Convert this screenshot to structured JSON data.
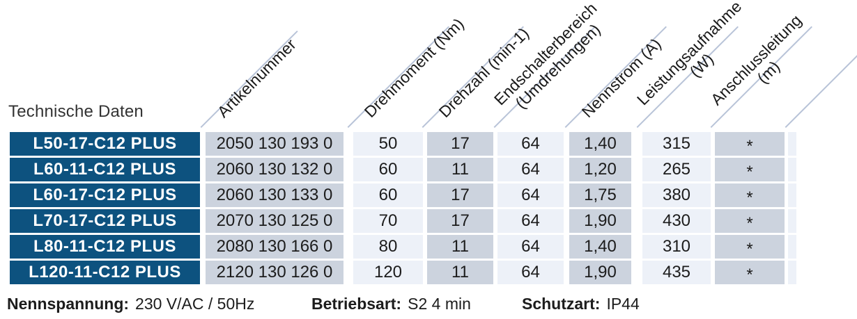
{
  "title": "Technische Daten",
  "table": {
    "headers": [
      {
        "line1": "Artikelnummer"
      },
      {
        "line1": "Drehmoment (Nm)"
      },
      {
        "line1": "Drehzahl (min-1)"
      },
      {
        "line1": "Endschalterbereich",
        "line2": "(Umdrehungen)"
      },
      {
        "line1": "Nennstrom (A)"
      },
      {
        "line1": "Leistungsaufnahme",
        "line2": "(W)"
      },
      {
        "line1": "Anschlussleitung",
        "line2": "(m)"
      }
    ],
    "rows": [
      {
        "model": "L50-17-C12 PLUS",
        "artikelnummer": "2050 130 193 0",
        "drehmoment": "50",
        "drehzahl": "17",
        "endschalterbereich": "64",
        "nennstrom": "1,40",
        "leistungsaufnahme": "315",
        "anschlussleitung": "*"
      },
      {
        "model": "L60-11-C12 PLUS",
        "artikelnummer": "2060 130 132 0",
        "drehmoment": "60",
        "drehzahl": "11",
        "endschalterbereich": "64",
        "nennstrom": "1,20",
        "leistungsaufnahme": "265",
        "anschlussleitung": "*"
      },
      {
        "model": "L60-17-C12 PLUS",
        "artikelnummer": "2060 130 133 0",
        "drehmoment": "60",
        "drehzahl": "17",
        "endschalterbereich": "64",
        "nennstrom": "1,75",
        "leistungsaufnahme": "380",
        "anschlussleitung": "*"
      },
      {
        "model": "L70-17-C12 PLUS",
        "artikelnummer": "2070 130 125 0",
        "drehmoment": "70",
        "drehzahl": "17",
        "endschalterbereich": "64",
        "nennstrom": "1,90",
        "leistungsaufnahme": "430",
        "anschlussleitung": "*"
      },
      {
        "model": "L80-11-C12 PLUS",
        "artikelnummer": "2080 130 166 0",
        "drehmoment": "80",
        "drehzahl": "11",
        "endschalterbereich": "64",
        "nennstrom": "1,40",
        "leistungsaufnahme": "310",
        "anschlussleitung": "*"
      },
      {
        "model": "L120-11-C12 PLUS",
        "artikelnummer": "2120 130 126 0",
        "drehmoment": "120",
        "drehzahl": "11",
        "endschalterbereich": "64",
        "nennstrom": "1,90",
        "leistungsaufnahme": "435",
        "anschlussleitung": "*"
      }
    ]
  },
  "footer": {
    "items": [
      {
        "label": "Nennspannung:",
        "value": "230 V/AC / 50Hz"
      },
      {
        "label": "Betriebsart:",
        "value": "S2 4 min"
      },
      {
        "label": "Schutzart:",
        "value": "IP44"
      }
    ]
  },
  "colors": {
    "model_cell_bg": "#0d527f",
    "cell_dark": "#ccd3de",
    "cell_light": "#edf1f8",
    "diagonal_line": "#b8c3d8",
    "text": "#1c1c1c"
  }
}
